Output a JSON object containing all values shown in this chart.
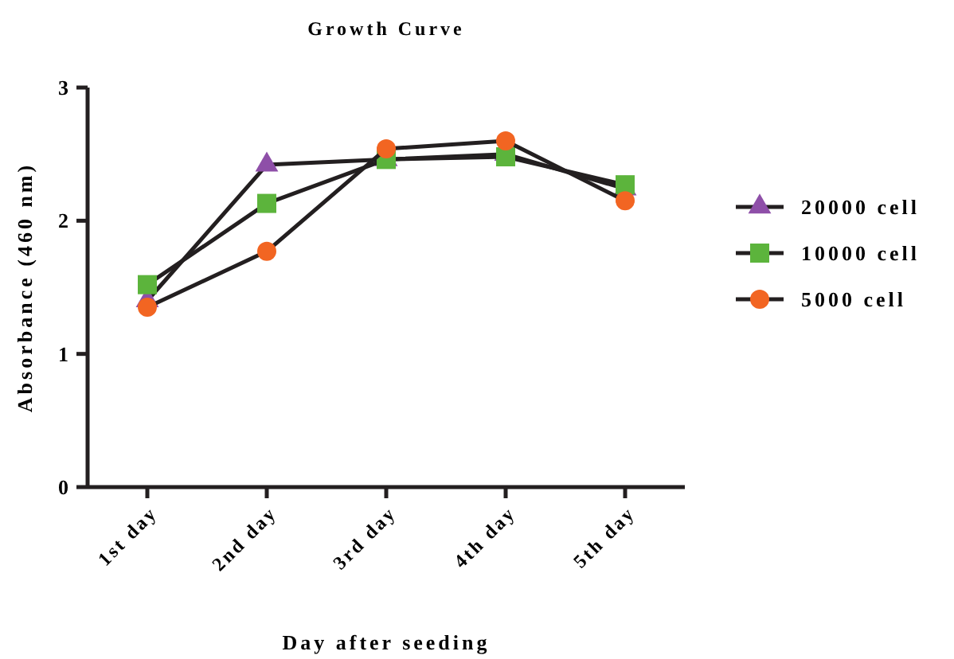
{
  "chart_data": {
    "type": "line",
    "title": "Growth Curve",
    "xlabel": "Day after seeding",
    "ylabel": "Absorbance (460 nm)",
    "categories": [
      "1st day",
      "2nd day",
      "3rd day",
      "4th day",
      "5th day"
    ],
    "ylim": [
      0,
      3
    ],
    "yticks": [
      0,
      1,
      2,
      3
    ],
    "grid": false,
    "legend": "right",
    "series": [
      {
        "name": "20000 cell",
        "color": "#8e4fa8",
        "marker": "triangle",
        "values": [
          1.4,
          2.42,
          2.46,
          2.5,
          2.24
        ]
      },
      {
        "name": "10000 cell",
        "color": "#5cb43c",
        "marker": "square",
        "values": [
          1.52,
          2.13,
          2.46,
          2.48,
          2.27
        ]
      },
      {
        "name": "5000 cell",
        "color": "#f26522",
        "marker": "circle",
        "values": [
          1.35,
          1.77,
          2.54,
          2.6,
          2.15
        ]
      }
    ]
  }
}
